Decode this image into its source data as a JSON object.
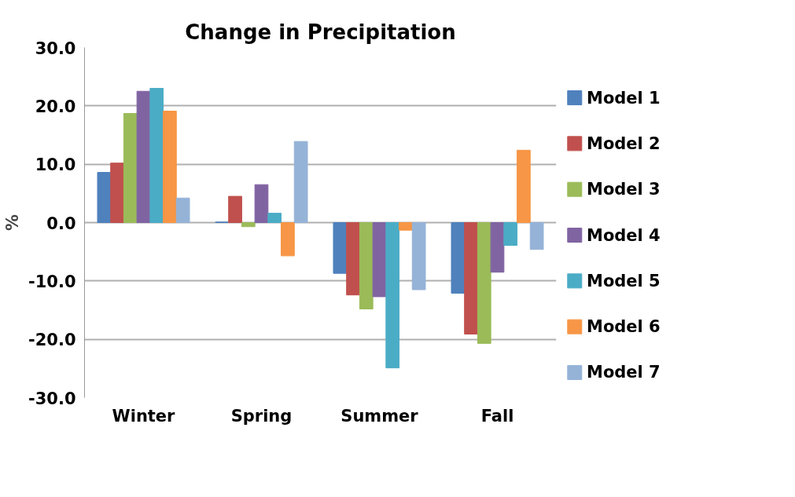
{
  "chart_data": {
    "type": "bar",
    "title": "Change in Precipitation",
    "ylabel": "%",
    "categories": [
      "Winter",
      "Spring",
      "Summer",
      "Fall"
    ],
    "series": [
      {
        "name": "Model 1",
        "color": "#4f81bd",
        "values": [
          8.6,
          0.1,
          -8.7,
          -12.1
        ]
      },
      {
        "name": "Model 2",
        "color": "#c0504d",
        "values": [
          10.2,
          4.5,
          -12.4,
          -19.1
        ]
      },
      {
        "name": "Model 3",
        "color": "#9bbb59",
        "values": [
          18.7,
          -0.7,
          -14.8,
          -20.7
        ]
      },
      {
        "name": "Model 4",
        "color": "#8064a2",
        "values": [
          22.5,
          6.5,
          -12.7,
          -8.5
        ]
      },
      {
        "name": "Model 5",
        "color": "#4bacc6",
        "values": [
          23.0,
          1.6,
          -24.9,
          -3.9
        ]
      },
      {
        "name": "Model 6",
        "color": "#f79646",
        "values": [
          19.1,
          -5.7,
          -1.3,
          12.4
        ]
      },
      {
        "name": "Model 7",
        "color": "#95b3d7",
        "values": [
          4.2,
          13.9,
          -11.5,
          -4.6
        ]
      }
    ],
    "ylim": [
      -30,
      30
    ],
    "yticks": [
      {
        "value": -30,
        "label": "-30.0"
      },
      {
        "value": -20,
        "label": "-20.0"
      },
      {
        "value": -10,
        "label": "-10.0"
      },
      {
        "value": 0,
        "label": "0.0"
      },
      {
        "value": 10,
        "label": "10.0"
      },
      {
        "value": 20,
        "label": "20.0"
      },
      {
        "value": 30,
        "label": "30.0"
      }
    ],
    "grid": "y",
    "legend": "right"
  }
}
